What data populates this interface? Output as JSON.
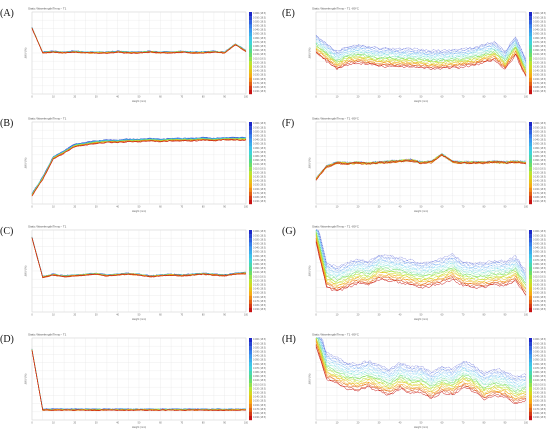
{
  "figure": {
    "panels": [
      {
        "letter": "(A)",
        "title": "Static Wavelength/Temp - T1",
        "chart_type": "multi-line",
        "range": [
          0,
          100
        ]
      },
      {
        "letter": "(B)",
        "title": "Static Wavelength/Temp - T1",
        "chart_type": "multi-line",
        "range": [
          0,
          100
        ]
      },
      {
        "letter": "(C)",
        "title": "Static Wavelength/Temp - T1",
        "chart_type": "multi-line",
        "range": [
          0,
          100
        ]
      },
      {
        "letter": "(D)",
        "title": "Static Wavelength/Temp - T1",
        "chart_type": "multi-line",
        "range": [
          0,
          100
        ]
      },
      {
        "letter": "(E)",
        "title": "Static Wavelength/Temp - T1 -80°C",
        "chart_type": "multi-line",
        "range": [
          0,
          100
        ]
      },
      {
        "letter": "(F)",
        "title": "Static Wavelength/Temp - T1 -80°C",
        "chart_type": "multi-line",
        "range": [
          0,
          100
        ]
      },
      {
        "letter": "(G)",
        "title": "Static Wavelength/Temp - T1 -80°C",
        "chart_type": "multi-line",
        "range": [
          0,
          100
        ]
      },
      {
        "letter": "(H)",
        "title": "Static Wavelength/Temp - T1 -80°C",
        "chart_type": "multi-line",
        "range": [
          0,
          100
        ]
      }
    ],
    "xlabel": "Height (mm)",
    "ylabel": "ΔWV (%)",
    "legend_entries": [
      "0.000 (18.5)",
      "0.010 (18.5)",
      "0.020 (18.5)",
      "0.030 (18.5)",
      "0.040 (18.5)",
      "0.050 (18.5)",
      "0.060 (18.5)",
      "0.070 (18.5)",
      "0.080 (18.5)",
      "0.090 (18.5)",
      "0.100 (18.5)",
      "0.110 (18.5)",
      "0.120 (18.5)",
      "0.130 (18.5)",
      "0.140 (18.5)",
      "0.150 (18.5)",
      "0.160 (18.5)",
      "0.170 (18.5)",
      "0.180 (18.5)",
      "0.190 (18.5)"
    ],
    "x_ticks": [
      "0",
      "5",
      "10",
      "15",
      "20",
      "25",
      "30",
      "35",
      "40",
      "45",
      "50",
      "55",
      "60",
      "65",
      "70",
      "75",
      "80",
      "85",
      "90",
      "95",
      "100"
    ],
    "colors": {
      "grid": "#e3e3e3",
      "frame": "#bdbdbd",
      "legend_top": "#1a2fcf",
      "legend_bottom": "#c0151a"
    }
  },
  "chart_data": [
    {
      "panel": "A",
      "type": "line",
      "x": [
        0,
        5,
        10,
        15,
        20,
        25,
        30,
        35,
        40,
        45,
        50,
        55,
        60,
        65,
        70,
        75,
        80,
        85,
        90,
        95,
        100
      ],
      "series": [
        {
          "values": [
            80,
            50,
            51,
            50,
            51,
            50,
            50,
            50,
            51,
            50,
            50,
            51,
            50,
            50,
            51,
            50,
            50,
            51,
            50,
            60,
            52
          ]
        }
      ]
    },
    {
      "panel": "B",
      "type": "line",
      "x": [
        0,
        5,
        10,
        15,
        20,
        25,
        30,
        35,
        40,
        45,
        50,
        55,
        60,
        65,
        70,
        75,
        80,
        85,
        90,
        95,
        100
      ],
      "series": [
        {
          "values": [
            10,
            30,
            55,
            62,
            70,
            72,
            74,
            75,
            75,
            76,
            76,
            77,
            76,
            77,
            77,
            77,
            78,
            77,
            78,
            78,
            78
          ]
        }
      ]
    },
    {
      "panel": "C",
      "type": "line",
      "x": [
        0,
        5,
        10,
        15,
        20,
        25,
        30,
        35,
        40,
        45,
        50,
        55,
        60,
        65,
        70,
        75,
        80,
        85,
        90,
        95,
        100
      ],
      "series": [
        {
          "values": [
            90,
            42,
            45,
            43,
            44,
            45,
            46,
            44,
            45,
            46,
            45,
            43,
            44,
            45,
            44,
            45,
            46,
            45,
            44,
            46,
            47
          ]
        }
      ]
    },
    {
      "panel": "D",
      "type": "line",
      "x": [
        0,
        5,
        10,
        15,
        20,
        25,
        30,
        35,
        40,
        45,
        50,
        55,
        60,
        65,
        70,
        75,
        80,
        85,
        90,
        95,
        100
      ],
      "series": [
        {
          "values": [
            85,
            12,
            12,
            12,
            12,
            12,
            12,
            12,
            12,
            12,
            12,
            12,
            12,
            12,
            12,
            12,
            12,
            12,
            12,
            12,
            12
          ]
        }
      ]
    },
    {
      "panel": "E",
      "type": "line",
      "x": [
        0,
        5,
        10,
        15,
        20,
        25,
        30,
        35,
        40,
        45,
        50,
        55,
        60,
        65,
        70,
        75,
        80,
        85,
        90,
        95,
        100
      ],
      "series": [
        {
          "values": [
            50,
            40,
            30,
            36,
            38,
            36,
            34,
            34,
            33,
            33,
            32,
            31,
            31,
            32,
            33,
            35,
            38,
            42,
            30,
            48,
            20
          ]
        }
      ]
    },
    {
      "panel": "F",
      "type": "line",
      "x": [
        0,
        5,
        10,
        15,
        20,
        25,
        30,
        35,
        40,
        45,
        50,
        55,
        60,
        65,
        70,
        75,
        80,
        85,
        90,
        95,
        100
      ],
      "series": [
        {
          "values": [
            30,
            45,
            50,
            49,
            50,
            49,
            50,
            51,
            52,
            53,
            50,
            51,
            60,
            51,
            50,
            50,
            50,
            51,
            50,
            51,
            50
          ]
        }
      ]
    },
    {
      "panel": "G",
      "type": "line",
      "x": [
        0,
        5,
        10,
        15,
        20,
        25,
        30,
        35,
        40,
        45,
        50,
        55,
        60,
        65,
        70,
        75,
        80,
        85,
        90,
        95,
        100
      ],
      "series": [
        {
          "values": [
            85,
            30,
            25,
            30,
            35,
            32,
            40,
            38,
            36,
            33,
            30,
            32,
            35,
            40,
            32,
            30,
            30,
            33,
            32,
            38,
            20
          ]
        }
      ]
    },
    {
      "panel": "H",
      "type": "line",
      "x": [
        0,
        5,
        10,
        15,
        20,
        25,
        30,
        35,
        40,
        45,
        50,
        55,
        60,
        65,
        70,
        75,
        80,
        85,
        90,
        95,
        100
      ],
      "series": [
        {
          "values": [
            90,
            50,
            44,
            38,
            36,
            40,
            35,
            30,
            38,
            33,
            34,
            26,
            34,
            30,
            40,
            35,
            25,
            30,
            28,
            20,
            24
          ]
        }
      ]
    }
  ]
}
